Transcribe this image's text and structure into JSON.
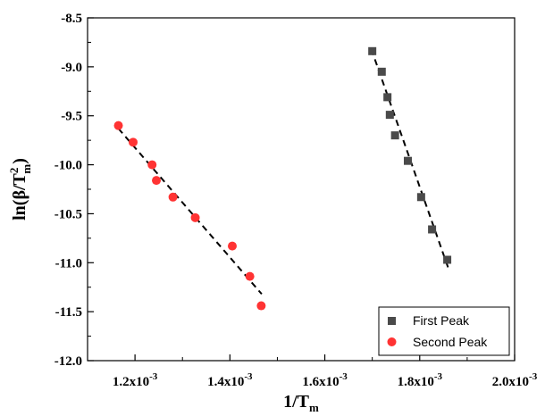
{
  "chart_data": {
    "type": "scatter",
    "xlabel": "1/T",
    "xlabel_sub": "m",
    "ylabel": "ln(β/T",
    "ylabel_sup": "2",
    "ylabel_sub": "m",
    "ylabel_close": ")",
    "xlim": [
      0.0011,
      0.002
    ],
    "ylim": [
      -12.0,
      -8.5
    ],
    "x_ticks": [
      {
        "value": 0.0012,
        "mantissa": "1.2x10",
        "exp": "-3"
      },
      {
        "value": 0.0014,
        "mantissa": "1.4x10",
        "exp": "-3"
      },
      {
        "value": 0.0016,
        "mantissa": "1.6x10",
        "exp": "-3"
      },
      {
        "value": 0.0018,
        "mantissa": "1.8x10",
        "exp": "-3"
      },
      {
        "value": 0.002,
        "mantissa": "2.0x10",
        "exp": "-3"
      }
    ],
    "y_ticks": [
      {
        "value": -8.5,
        "label": "-8.5"
      },
      {
        "value": -9.0,
        "label": "-9.0"
      },
      {
        "value": -9.5,
        "label": "-9.5"
      },
      {
        "value": -10.0,
        "label": "-10.0"
      },
      {
        "value": -10.5,
        "label": "-10.5"
      },
      {
        "value": -11.0,
        "label": "-11.0"
      },
      {
        "value": -11.5,
        "label": "-11.5"
      },
      {
        "value": -12.0,
        "label": "-12.0"
      }
    ],
    "legend_position": "bottom-right",
    "series": [
      {
        "name": "First Peak",
        "marker": "square",
        "color": "#4a4a4a",
        "points": [
          {
            "x": 0.0017,
            "y": -8.84
          },
          {
            "x": 0.00172,
            "y": -9.05
          },
          {
            "x": 0.001732,
            "y": -9.31
          },
          {
            "x": 0.001737,
            "y": -9.49
          },
          {
            "x": 0.001748,
            "y": -9.7
          },
          {
            "x": 0.001775,
            "y": -9.96
          },
          {
            "x": 0.001803,
            "y": -10.33
          },
          {
            "x": 0.001826,
            "y": -10.66
          },
          {
            "x": 0.001858,
            "y": -10.97
          }
        ],
        "fit": {
          "x": [
            0.001698,
            0.001862
          ],
          "y": [
            -8.82,
            -11.08
          ]
        }
      },
      {
        "name": "Second Peak",
        "marker": "circle",
        "color": "#ff3333",
        "points": [
          {
            "x": 0.001165,
            "y": -9.6
          },
          {
            "x": 0.001196,
            "y": -9.77
          },
          {
            "x": 0.001236,
            "y": -10.0
          },
          {
            "x": 0.001245,
            "y": -10.16
          },
          {
            "x": 0.00128,
            "y": -10.33
          },
          {
            "x": 0.001327,
            "y": -10.54
          },
          {
            "x": 0.001405,
            "y": -10.83
          },
          {
            "x": 0.001442,
            "y": -11.14
          },
          {
            "x": 0.001466,
            "y": -11.44
          }
        ],
        "fit": {
          "x": [
            0.001165,
            0.001467
          ],
          "y": [
            -9.63,
            -11.32
          ]
        }
      }
    ]
  }
}
